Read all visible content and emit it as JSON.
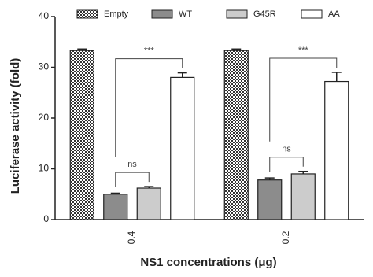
{
  "chart_data": {
    "type": "bar",
    "x_label": "NS1 concentrations (μg)",
    "y_label": "Luciferase activity (fold)",
    "categories": [
      "0.4",
      "0.2"
    ],
    "series": [
      {
        "name": "Empty",
        "color": "#ffffff",
        "pattern": "checker",
        "values": [
          33.3,
          33.3
        ],
        "errors": [
          0.3,
          0.3
        ]
      },
      {
        "name": "WT",
        "color": "#8c8c8c",
        "values": [
          5.0,
          7.8
        ],
        "errors": [
          0.2,
          0.4
        ]
      },
      {
        "name": "G45R",
        "color": "#cccccc",
        "values": [
          6.2,
          9.0
        ],
        "errors": [
          0.3,
          0.5
        ]
      },
      {
        "name": "AA",
        "color": "#ffffff",
        "values": [
          28.0,
          27.2
        ],
        "errors": [
          0.9,
          1.8
        ]
      }
    ],
    "annotations": [
      {
        "text": "ns",
        "between": [
          "WT",
          "G45R"
        ]
      },
      {
        "text": "***",
        "between": [
          "WT",
          "AA"
        ]
      }
    ],
    "ylim": [
      0,
      40
    ],
    "yticks": [
      0,
      10,
      20,
      30,
      40
    ],
    "legend": "top"
  }
}
